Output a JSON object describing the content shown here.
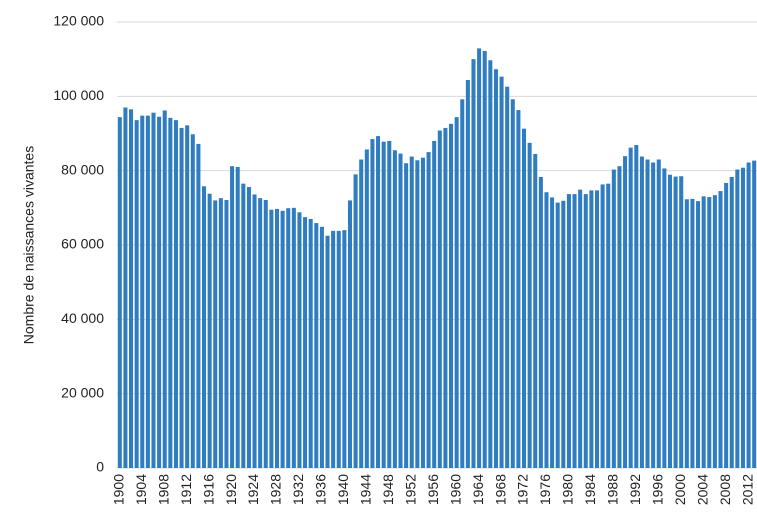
{
  "chart_data": {
    "type": "bar",
    "y_label": "Nombre de naissances vivantes",
    "categories": [
      "1900",
      null,
      null,
      null,
      "1904",
      null,
      null,
      null,
      "1908",
      null,
      null,
      null,
      "1912",
      null,
      null,
      null,
      "1916",
      null,
      null,
      null,
      "1920",
      null,
      null,
      null,
      "1924",
      null,
      null,
      null,
      "1928",
      null,
      null,
      null,
      "1932",
      null,
      null,
      null,
      "1936",
      null,
      null,
      null,
      "1940",
      null,
      null,
      null,
      "1944",
      null,
      null,
      null,
      "1948",
      null,
      null,
      null,
      "1952",
      null,
      null,
      null,
      "1956",
      null,
      null,
      null,
      "1960",
      null,
      null,
      null,
      "1964",
      null,
      null,
      null,
      "1968",
      null,
      null,
      null,
      "1972",
      null,
      null,
      null,
      "1976",
      null,
      null,
      null,
      "1980",
      null,
      null,
      null,
      "1984",
      null,
      null,
      null,
      "1988",
      null,
      null,
      null,
      "1992",
      null,
      null,
      null,
      "1996",
      null,
      null,
      null,
      "2000",
      null,
      null,
      null,
      "2004",
      null,
      null,
      null,
      "2008",
      null,
      null,
      null,
      "2012",
      null
    ],
    "values": [
      94400,
      97000,
      96500,
      93600,
      94800,
      94800,
      95600,
      94500,
      96200,
      94200,
      93600,
      91500,
      92200,
      89800,
      87200,
      75800,
      73800,
      72000,
      72600,
      72100,
      81200,
      81000,
      76500,
      75600,
      73600,
      72600,
      72100,
      69500,
      69700,
      69200,
      69900,
      70000,
      68800,
      67500,
      67000,
      65900,
      64900,
      62500,
      63800,
      63800,
      64000,
      72000,
      79000,
      83000,
      85700,
      88500,
      89300,
      87800,
      88000,
      85500,
      84600,
      82000,
      83800,
      82800,
      83500,
      85000,
      88000,
      90800,
      91500,
      92600,
      94400,
      99200,
      104400,
      110000,
      112900,
      112200,
      109700,
      107300,
      105300,
      102600,
      99200,
      96300,
      91300,
      87500,
      84500,
      78300,
      74200,
      72800,
      71400,
      71900,
      73700,
      73700,
      74900,
      73700,
      74700,
      74700,
      76300,
      76500,
      80300,
      81200,
      83900,
      86200,
      86900,
      83800,
      83000,
      82200,
      83000,
      80600,
      78900,
      78400,
      78500,
      72300,
      72400,
      71800,
      73100,
      72900,
      73400,
      74500,
      76700,
      78300,
      80300,
      80800,
      82200,
      82700
    ],
    "color": "#2f7dc0",
    "ylim": [
      0,
      120000
    ],
    "yticks": [
      0,
      {
        "value": 20000,
        "label": "20 000"
      },
      {
        "value": 40000,
        "label": "40 000"
      },
      {
        "value": 60000,
        "label": "60 000"
      },
      {
        "value": 80000,
        "label": "80 000"
      },
      {
        "value": 100000,
        "label": "100 000"
      },
      {
        "value": 120000,
        "label": "120 000"
      }
    ],
    "grid": true
  }
}
